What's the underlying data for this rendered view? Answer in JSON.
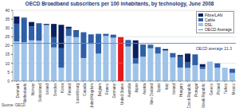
{
  "chart_data": {
    "type": "bar",
    "title": "OECD Broadband subscribers per 100 inhabitants, by technology, June 2008",
    "annotations": [
      "Source: OECD"
    ],
    "categories": [
      "Denmark",
      "Netherlands",
      "Norway",
      "Switzerland",
      "Iceland",
      "Sweden",
      "Korea",
      "Finland",
      "Luxembourg",
      "Canada",
      "United Kingdom",
      "Belgium",
      "France",
      "Germany",
      "United States",
      "Australia",
      "Japan",
      "Austria",
      "New Zealand",
      "Spain",
      "Italy",
      "Ireland",
      "Hungary",
      "Czech Republic",
      "Portugal",
      "Slovak Republic",
      "Greece",
      "Poland",
      "Turkey",
      "Mexico"
    ],
    "series": [
      {
        "name": "Fibre/LAN",
        "color": "#0b1f5c",
        "colors": [
          "#0b1f5c",
          "#0b1f5c",
          "#0b1f5c",
          "#0b1f5c",
          "#0b1f5c",
          "#0b1f5c",
          "#0b1f5c",
          "#0b1f5c",
          "#0b1f5c",
          "#0b1f5c",
          "#0b1f5c",
          "#0b1f5c",
          "#0b1f5c",
          "#0b1f5c",
          "#e41a1c",
          "#0b1f5c",
          "#0b1f5c",
          "#0b1f5c",
          "#0b1f5c",
          "#0b1f5c",
          "#0b1f5c",
          "#0b1f5c",
          "#0b1f5c",
          "#0b1f5c",
          "#0b1f5c",
          "#0b1f5c",
          "#0b1f5c",
          "#0b1f5c",
          "#0b1f5c",
          "#0b1f5c"
        ],
        "values": [
          4.1,
          0.4,
          2.5,
          0,
          0.6,
          7.5,
          13.3,
          1.0,
          0.4,
          0,
          0,
          0,
          0,
          0.1,
          1.4,
          0,
          10.0,
          0.3,
          0.5,
          0.1,
          0.8,
          0.3,
          1.0,
          5.0,
          0.1,
          1.5,
          0,
          0,
          0,
          0
        ]
      },
      {
        "name": "Cable",
        "color": "#2e5fa8",
        "colors": [
          "#2e5fa8",
          "#2e5fa8",
          "#2e5fa8",
          "#2e5fa8",
          "#2e5fa8",
          "#2e5fa8",
          "#2e5fa8",
          "#2e5fa8",
          "#2e5fa8",
          "#2e5fa8",
          "#2e5fa8",
          "#2e5fa8",
          "#2e5fa8",
          "#2e5fa8",
          "#e41a1c",
          "#2e5fa8",
          "#2e5fa8",
          "#2e5fa8",
          "#2e5fa8",
          "#2e5fa8",
          "#2e5fa8",
          "#2e5fa8",
          "#2e5fa8",
          "#2e5fa8",
          "#2e5fa8",
          "#2e5fa8",
          "#2e5fa8",
          "#2e5fa8",
          "#2e5fa8",
          "#2e5fa8"
        ],
        "values": [
          10.0,
          13.5,
          7.9,
          9.9,
          0,
          5.8,
          11.0,
          4.2,
          3.5,
          14.6,
          5.4,
          11.2,
          1.2,
          1.6,
          13.4,
          3.7,
          3.1,
          6.6,
          1.5,
          3.6,
          0,
          2.2,
          6.1,
          3.1,
          6.0,
          1.2,
          0,
          2.5,
          0.1,
          2.3
        ]
      },
      {
        "name": "DSL",
        "color": "#9fc3e8",
        "colors": [
          "#9fc3e8",
          "#9fc3e8",
          "#9fc3e8",
          "#9fc3e8",
          "#9fc3e8",
          "#9fc3e8",
          "#9fc3e8",
          "#9fc3e8",
          "#9fc3e8",
          "#9fc3e8",
          "#9fc3e8",
          "#9fc3e8",
          "#9fc3e8",
          "#9fc3e8",
          "#e41a1c",
          "#9fc3e8",
          "#9fc3e8",
          "#9fc3e8",
          "#9fc3e8",
          "#9fc3e8",
          "#9fc3e8",
          "#9fc3e8",
          "#9fc3e8",
          "#9fc3e8",
          "#9fc3e8",
          "#9fc3e8",
          "#9fc3e8",
          "#9fc3e8",
          "#9fc3e8",
          "#9fc3e8"
        ],
        "values": [
          22.4,
          21.9,
          23.0,
          22.8,
          31.7,
          19.0,
          7.5,
          25.5,
          24.8,
          13.0,
          21.0,
          15.5,
          25.5,
          24.5,
          10.0,
          19.5,
          9.9,
          13.7,
          18.5,
          15.5,
          17.3,
          13.3,
          7.6,
          7.4,
          9.0,
          6.8,
          11.0,
          7.5,
          7.3,
          4.6
        ]
      }
    ],
    "average": {
      "name": "OECD Average",
      "value": 21.3,
      "label": "OECD average 21.3",
      "color": "#5b8fd0"
    },
    "stacked": true,
    "ylim": [
      0,
      40
    ],
    "yticks": [
      0,
      5,
      10,
      15,
      20,
      25,
      30,
      35,
      40
    ],
    "grid": true,
    "legend": "top-right"
  }
}
